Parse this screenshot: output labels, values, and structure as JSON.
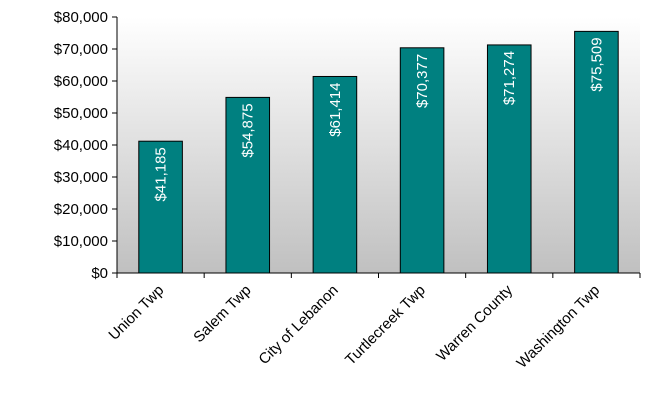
{
  "chart_data": {
    "type": "bar",
    "title": "",
    "xlabel": "",
    "ylabel": "",
    "categories": [
      "Union Twp",
      "Salem Twp",
      "City of Lebanon",
      "Turtlecreek Twp",
      "Warren County",
      "Washington Twp"
    ],
    "values": [
      41185,
      54875,
      61414,
      70377,
      71274,
      75509
    ],
    "data_labels": [
      "$41,185",
      "$54,875",
      "$61,414",
      "$70,377",
      "$71,274",
      "$75,509"
    ],
    "ylim": [
      0,
      80000
    ],
    "yticks": [
      0,
      10000,
      20000,
      30000,
      40000,
      50000,
      60000,
      70000,
      80000
    ],
    "ytick_labels": [
      "$0",
      "$10,000",
      "$20,000",
      "$30,000",
      "$40,000",
      "$50,000",
      "$60,000",
      "$70,000",
      "$80,000"
    ],
    "grid": false,
    "legend": "none",
    "colors": {
      "bar": "#008080",
      "plot_background": "#c0c0c0",
      "data_label": "#ffffff"
    }
  }
}
